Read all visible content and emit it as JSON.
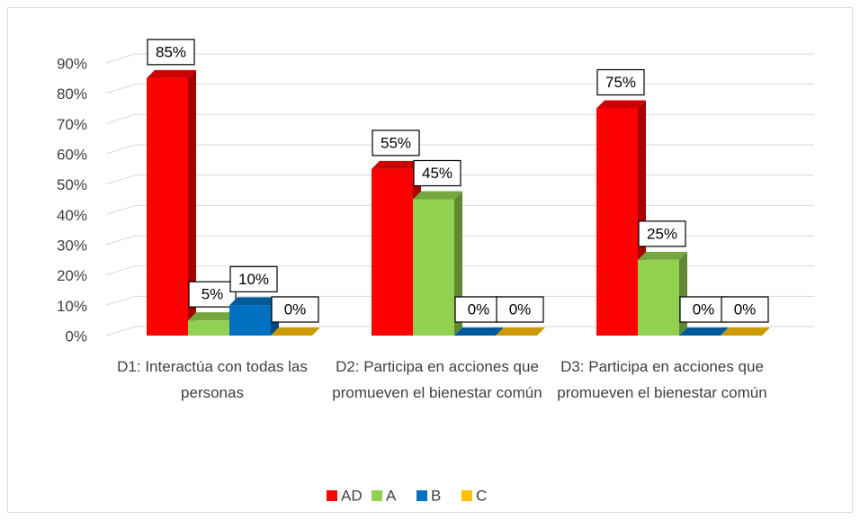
{
  "chart_data": {
    "type": "bar3d",
    "categories": [
      "D1: Interactúa con todas las personas",
      "D2: Participa en acciones que promueven el bienestar común",
      "D3: Participa en acciones que promueven el bienestar común"
    ],
    "series": [
      {
        "name": "AD",
        "color": "#ff0000",
        "values": [
          85,
          55,
          75
        ],
        "value_labels": [
          "85%",
          "55%",
          "75%"
        ]
      },
      {
        "name": "A",
        "color": "#92d050",
        "values": [
          5,
          45,
          25
        ],
        "value_labels": [
          "5%",
          "45%",
          "25%"
        ]
      },
      {
        "name": "B",
        "color": "#0070c0",
        "values": [
          10,
          0,
          0
        ],
        "value_labels": [
          "10%",
          "0%",
          "0%"
        ]
      },
      {
        "name": "C",
        "color": "#ffc000",
        "values": [
          0,
          0,
          0
        ],
        "value_labels": [
          "0%",
          "0%",
          "0%"
        ]
      }
    ],
    "ylim": [
      0,
      90
    ],
    "yticks": [
      {
        "value": 0,
        "label": "0%"
      },
      {
        "value": 10,
        "label": "10%"
      },
      {
        "value": 20,
        "label": "20%"
      },
      {
        "value": 30,
        "label": "30%"
      },
      {
        "value": 40,
        "label": "40%"
      },
      {
        "value": 50,
        "label": "50%"
      },
      {
        "value": 60,
        "label": "60%"
      },
      {
        "value": 70,
        "label": "70%"
      },
      {
        "value": 80,
        "label": "80%"
      },
      {
        "value": 90,
        "label": "90%"
      }
    ],
    "grid": true,
    "legend": "bottom"
  }
}
